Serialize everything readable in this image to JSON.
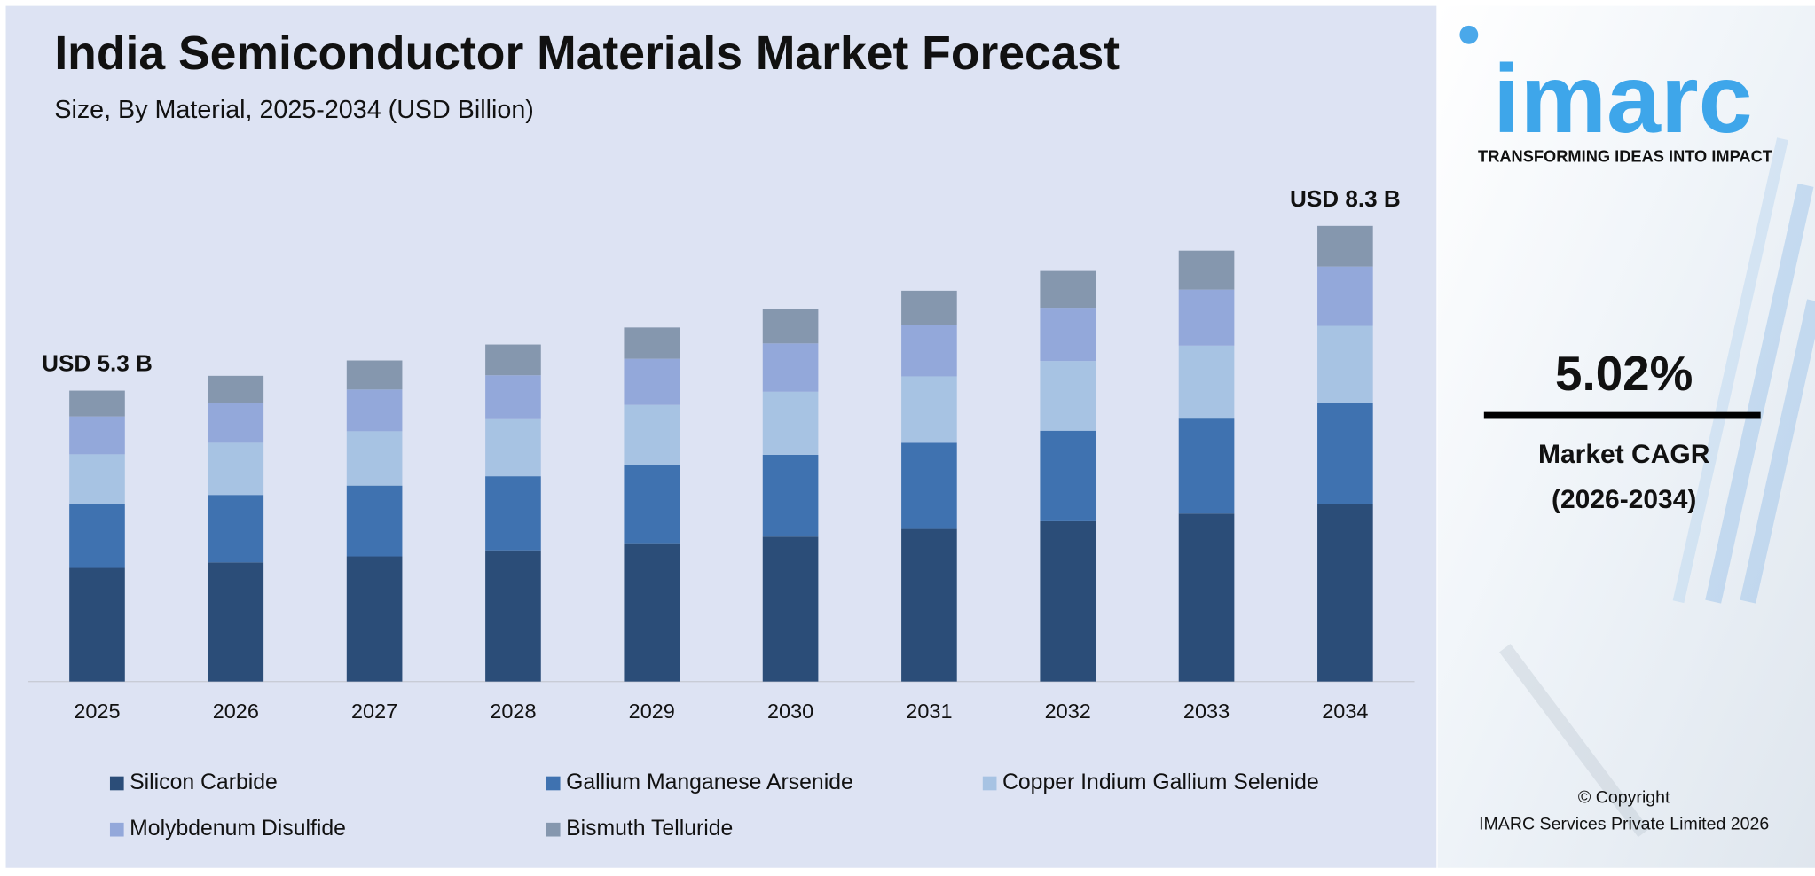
{
  "chart_data": {
    "type": "stacked-bar",
    "title": "India Semiconductor Materials Market Forecast",
    "subtitle": "Size, By Material, 2025-2034 (USD Billion)",
    "categories": [
      "2025",
      "2026",
      "2027",
      "2028",
      "2029",
      "2030",
      "2031",
      "2032",
      "2033",
      "2034"
    ],
    "series": [
      {
        "name": "Silicon Carbide",
        "color": "#2b4d78",
        "values": [
          2.07,
          2.17,
          2.28,
          2.39,
          2.52,
          2.64,
          2.78,
          2.92,
          3.06,
          3.24
        ]
      },
      {
        "name": "Gallium Manganese Arsenide",
        "color": "#3f72b0",
        "values": [
          1.17,
          1.23,
          1.29,
          1.35,
          1.42,
          1.49,
          1.57,
          1.65,
          1.73,
          1.83
        ]
      },
      {
        "name": "Copper Indium Gallium Selenide",
        "color": "#a7c3e3",
        "values": [
          0.9,
          0.95,
          0.99,
          1.04,
          1.1,
          1.15,
          1.21,
          1.27,
          1.33,
          1.41
        ]
      },
      {
        "name": "Molybdenum Disulfide",
        "color": "#93a8da",
        "values": [
          0.69,
          0.72,
          0.76,
          0.8,
          0.84,
          0.88,
          0.93,
          0.97,
          1.02,
          1.08
        ]
      },
      {
        "name": "Bismuth Telluride",
        "color": "#8597ae",
        "values": [
          0.47,
          0.5,
          0.53,
          0.56,
          0.57,
          0.62,
          0.63,
          0.67,
          0.71,
          0.74
        ]
      }
    ],
    "annotations": [
      "USD 5.3 B",
      "USD 8.3 B"
    ],
    "ylim": [
      0,
      9
    ],
    "grid": false
  },
  "sidebar": {
    "logo": "imarc",
    "tagline": "TRANSFORMING IDEAS INTO IMPACT",
    "cagr": "5.02%",
    "cagr_label": "Market CAGR",
    "cagr_period": "(2026-2034)",
    "copyright": "© Copyright",
    "company": "IMARC Services Private Limited 2026"
  }
}
